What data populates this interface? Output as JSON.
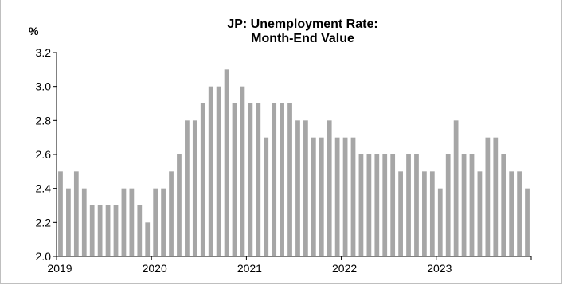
{
  "chart_data": {
    "type": "bar",
    "title": "JP: Unemployment Rate:",
    "subtitle": "Month-End Value",
    "ylabel": "%",
    "xlabel": "",
    "ylim": [
      2.0,
      3.2
    ],
    "yticks": [
      "3.2",
      "3.0",
      "2.8",
      "2.6",
      "2.4",
      "2.2",
      "2.0"
    ],
    "year_labels": [
      "2019",
      "2020",
      "2021",
      "2022",
      "2023"
    ],
    "grid": false,
    "legend": "none",
    "bar_color": "#a6a6a6",
    "values": [
      2.5,
      2.4,
      2.5,
      2.4,
      2.3,
      2.3,
      2.3,
      2.3,
      2.4,
      2.4,
      2.3,
      2.2,
      2.4,
      2.4,
      2.5,
      2.6,
      2.8,
      2.8,
      2.9,
      3.0,
      3.0,
      3.1,
      2.9,
      3.0,
      2.9,
      2.9,
      2.7,
      2.9,
      2.9,
      2.9,
      2.8,
      2.8,
      2.7,
      2.7,
      2.8,
      2.7,
      2.7,
      2.7,
      2.6,
      2.6,
      2.6,
      2.6,
      2.6,
      2.5,
      2.6,
      2.6,
      2.5,
      2.5,
      2.4,
      2.6,
      2.8,
      2.6,
      2.6,
      2.5,
      2.7,
      2.7,
      2.6,
      2.5,
      2.5,
      2.4
    ]
  }
}
